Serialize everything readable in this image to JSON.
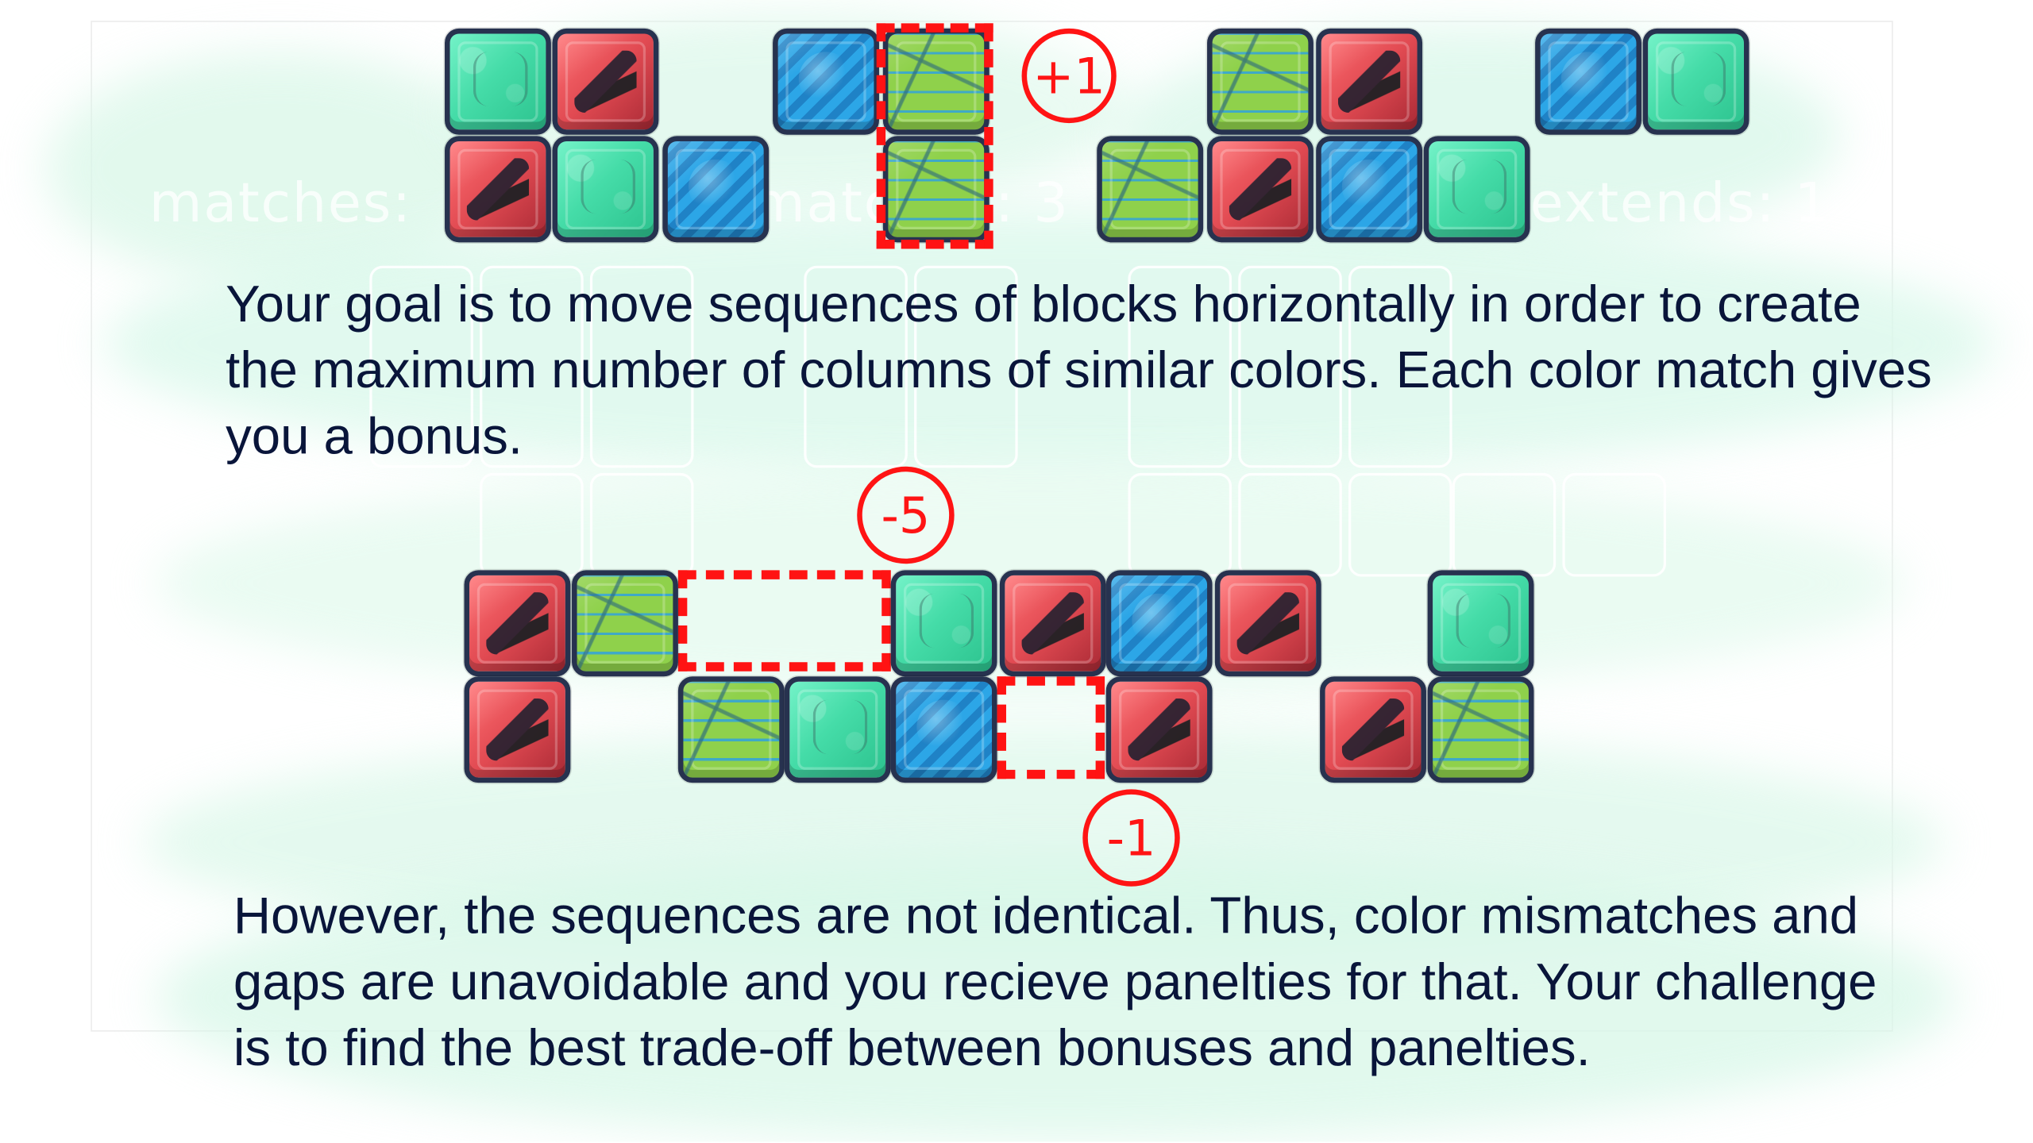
{
  "tutorial": {
    "top_text": [
      "Your goal is to move sequences of blocks horizontally in order to create",
      "the maximum number of columns of similar colors. Each color match gives",
      "you a bonus."
    ],
    "bottom_text": [
      "However, the sequences are not identical. Thus, color mismatches and",
      "gaps are unavoidable and you recieve panelties for that. Your challenge",
      "is to find the best trade-off between bonuses and panelties."
    ],
    "badges": {
      "plus_one": "+1",
      "minus_five": "-5",
      "minus_one": "-1"
    }
  },
  "background_labels": {
    "left": "matches:",
    "middle": "matches: 3",
    "right": "extends: 1"
  },
  "block_colors": {
    "red": "#e14a52",
    "blue": "#2aa0df",
    "teal": "#45dca8",
    "green": "#87cb45",
    "dashed_red": "#ff1313",
    "text": "#09153a"
  }
}
